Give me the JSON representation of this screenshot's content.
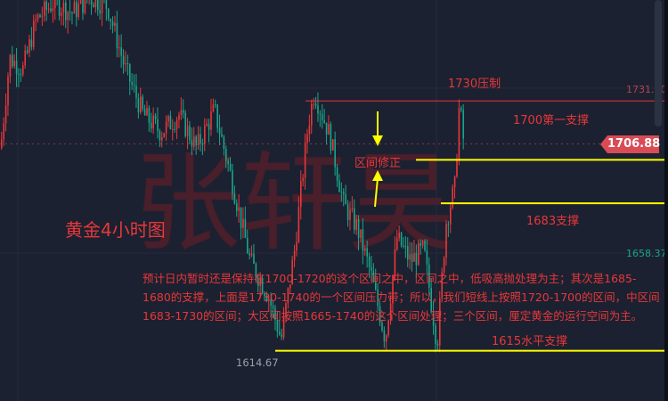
{
  "chart_data": {
    "type": "candlestick",
    "title": "黄金4小时图",
    "ylim": [
      1592.7,
      1770.8
    ],
    "price_path": [
      [
        0,
        1705
      ],
      [
        10,
        1745
      ],
      [
        25,
        1740
      ],
      [
        40,
        1762
      ],
      [
        60,
        1770
      ],
      [
        80,
        1765
      ],
      [
        100,
        1772
      ],
      [
        120,
        1768
      ],
      [
        140,
        1740
      ],
      [
        160,
        1720
      ],
      [
        180,
        1712
      ],
      [
        200,
        1720
      ],
      [
        220,
        1705
      ],
      [
        240,
        1722
      ],
      [
        260,
        1690
      ],
      [
        280,
        1655
      ],
      [
        300,
        1640
      ],
      [
        315,
        1620
      ],
      [
        330,
        1660
      ],
      [
        345,
        1715
      ],
      [
        352,
        1730
      ],
      [
        370,
        1710
      ],
      [
        385,
        1680
      ],
      [
        400,
        1670
      ],
      [
        415,
        1650
      ],
      [
        432,
        1620
      ],
      [
        445,
        1665
      ],
      [
        460,
        1655
      ],
      [
        475,
        1660
      ],
      [
        490,
        1618
      ],
      [
        500,
        1672
      ],
      [
        510,
        1688
      ],
      [
        515,
        1725
      ],
      [
        520,
        1707
      ]
    ],
    "axis_labels": {
      "high": "1731.20",
      "low_right": "1658.37",
      "low_marker": "1614.67"
    },
    "current_price": "1706.88",
    "levels": [
      {
        "label": "1730压制",
        "price": 1726,
        "color": "#e8373a"
      },
      {
        "label": "1700第一支撑",
        "price": 1699.8,
        "color": "#ffff00"
      },
      {
        "label": "1683支撑",
        "price": 1680.5,
        "color": "#ffff00"
      },
      {
        "label": "1615水平支撑",
        "price": 1615,
        "color": "#ffff00"
      }
    ],
    "colors": {
      "up": "#e8373a",
      "down": "#1aa58a",
      "background": "#1b2130"
    }
  },
  "annotations": {
    "title": "黄金4小时图",
    "correction": "区间修正",
    "resist": "1730压制",
    "support1": "1700第一支撑",
    "support2": "1683支撑",
    "support3": "1615水平支撑",
    "paragraph": "预计日内暂时还是保持在1700-1720的这个区间之中，区间之中，低吸高抛处理为主；其次是1685-1680的支撑，上面是1730-1740的一个区间压力带；所以，我们短线上按照1720-1700的区间，中区间1683-1730的区间；大区间按照1665-1740的这个区间处理；三个区间，厘定黄金的运行空间为主。"
  },
  "watermark": "张轩昊"
}
